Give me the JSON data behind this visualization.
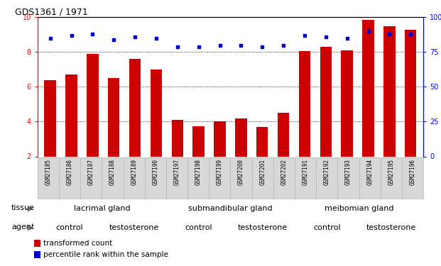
{
  "title": "GDS1361 / 1971",
  "samples": [
    "GSM27185",
    "GSM27186",
    "GSM27187",
    "GSM27188",
    "GSM27189",
    "GSM27190",
    "GSM27197",
    "GSM27198",
    "GSM27199",
    "GSM27200",
    "GSM27201",
    "GSM27202",
    "GSM27191",
    "GSM27192",
    "GSM27193",
    "GSM27194",
    "GSM27195",
    "GSM27196"
  ],
  "bar_values": [
    6.4,
    6.7,
    7.9,
    6.5,
    7.6,
    7.0,
    4.1,
    3.75,
    4.0,
    4.2,
    3.7,
    4.5,
    8.05,
    8.3,
    8.1,
    9.85,
    9.5,
    9.3
  ],
  "dot_values": [
    85,
    87,
    88,
    84,
    86,
    85,
    79,
    79,
    80,
    80,
    79,
    80,
    87,
    86,
    85,
    90,
    88,
    88
  ],
  "bar_color": "#cc0000",
  "dot_color": "#0000cc",
  "ylim_left": [
    2,
    10
  ],
  "ylim_right": [
    0,
    100
  ],
  "yticks_left": [
    2,
    4,
    6,
    8,
    10
  ],
  "yticks_right": [
    0,
    25,
    50,
    75,
    100
  ],
  "grid_values": [
    4,
    6,
    8
  ],
  "tissue_groups": [
    {
      "label": "lacrimal gland",
      "start": 0,
      "end": 6,
      "color": "#ccffcc"
    },
    {
      "label": "submandibular gland",
      "start": 6,
      "end": 12,
      "color": "#88ee88"
    },
    {
      "label": "meibomian gland",
      "start": 12,
      "end": 18,
      "color": "#44cc44"
    }
  ],
  "agent_groups": [
    {
      "label": "control",
      "start": 0,
      "end": 3,
      "color": "#ee88ee"
    },
    {
      "label": "testosterone",
      "start": 3,
      "end": 6,
      "color": "#cc44cc"
    },
    {
      "label": "control",
      "start": 6,
      "end": 9,
      "color": "#ee88ee"
    },
    {
      "label": "testosterone",
      "start": 9,
      "end": 12,
      "color": "#cc44cc"
    },
    {
      "label": "control",
      "start": 12,
      "end": 15,
      "color": "#ee88ee"
    },
    {
      "label": "testosterone",
      "start": 15,
      "end": 18,
      "color": "#cc44cc"
    }
  ],
  "legend_items": [
    {
      "label": "transformed count",
      "color": "#cc0000"
    },
    {
      "label": "percentile rank within the sample",
      "color": "#0000cc"
    }
  ],
  "tissue_label": "tissue",
  "agent_label": "agent",
  "plot_bg": "#ffffff",
  "xtick_bg": "#d8d8d8"
}
